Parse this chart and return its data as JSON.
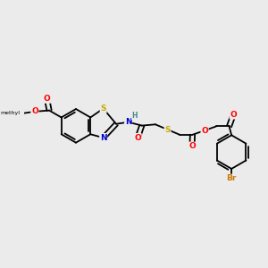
{
  "background_color": "#ebebeb",
  "bond_color": "#000000",
  "atom_colors": {
    "O": "#ff0000",
    "N": "#0000cc",
    "S": "#ccaa00",
    "Br": "#cc7700",
    "H": "#448888",
    "C": "#000000"
  },
  "figsize": [
    3.0,
    3.0
  ],
  "dpi": 100,
  "bond_lw": 1.3,
  "font_size": 6.5
}
